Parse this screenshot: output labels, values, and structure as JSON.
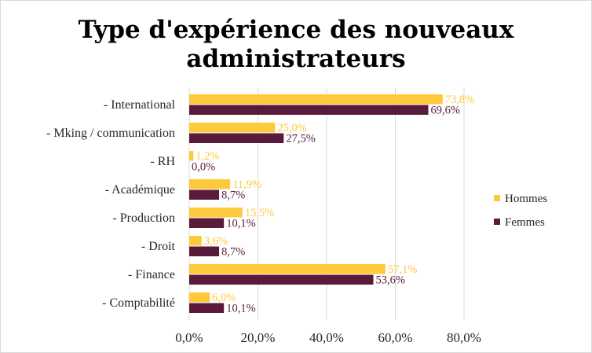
{
  "chart_data": {
    "type": "bar",
    "orientation": "horizontal",
    "title_lines": [
      "Type d'expérience des nouveaux",
      "administrateurs"
    ],
    "categories": [
      "- International",
      "- Mking / communication",
      "- RH",
      "- Académique",
      "- Production",
      "- Droit",
      "- Finance",
      "- Comptabilité"
    ],
    "series": [
      {
        "name": "Hommes",
        "color": "#ffc93c",
        "values": [
          73.8,
          25.0,
          1.2,
          11.9,
          15.5,
          3.6,
          57.1,
          6.0
        ],
        "labels": [
          "73,8%",
          "25,0%",
          "1,2%",
          "11,9%",
          "15,5%",
          "3,6%",
          "57,1%",
          "6,0%"
        ]
      },
      {
        "name": "Femmes",
        "color": "#5a1a3c",
        "values": [
          69.6,
          27.5,
          0.0,
          8.7,
          10.1,
          8.7,
          53.6,
          10.1
        ],
        "labels": [
          "69,6%",
          "27,5%",
          "0,0%",
          "8,7%",
          "10,1%",
          "8,7%",
          "53,6%",
          "10,1%"
        ]
      }
    ],
    "xlim": [
      0,
      80
    ],
    "xticks": [
      0,
      20,
      40,
      60,
      80
    ],
    "xtick_labels": [
      "0,0%",
      "20,0%",
      "40,0%",
      "60,0%",
      "80,0%"
    ],
    "grid": true,
    "legend_position": "right"
  }
}
